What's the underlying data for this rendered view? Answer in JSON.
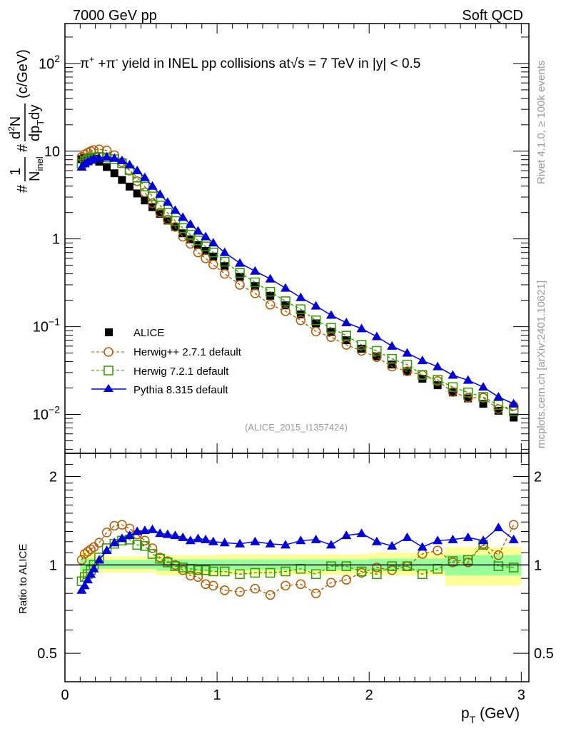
{
  "header": {
    "left": "7000 GeV pp",
    "right": "Soft QCD"
  },
  "side_labels": {
    "rivet": "Rivet 4.1.0, ≥ 100k events",
    "mcplots": "mcplots.cern.ch [arXiv:2401.10621]"
  },
  "chart_data": [
    {
      "type": "scatter",
      "panel": "main",
      "title": "π⁺ +π⁻ yield in INEL pp collisions at √s = 7 TeV in |y| < 0.5",
      "title_parts": {
        "pi_plus": "π",
        "sup_plus": "+",
        "pi_minus": " +π",
        "sup_minus": "-",
        "rest1": " yield in INEL pp collisions at",
        "sqrt_s": "s",
        "rest2": " =  7 TeV in |y| < 0.5"
      },
      "analysis_id": "(ALICE_2015_I1357424)",
      "xlabel": "p_T (GeV)",
      "xlabel_main": "p",
      "xlabel_sub": "T",
      "xlabel_unit": " (GeV)",
      "ylabel": "1/N_inel d²N/dp_T dy (c/GeV)",
      "ylabel_parts": {
        "hash": "#",
        "one": "1",
        "ninel": "N",
        "inel_sub": "inel",
        "d2n": "d",
        "sq": "2",
        "n": "N",
        "dp": "dp",
        "t": "T",
        "dy": "dy",
        "unit": "(c/GeV)"
      },
      "xlim": [
        0,
        3.05
      ],
      "ylim": [
        0.0036,
        285
      ],
      "yscale": "log",
      "yticks": [
        {
          "v": 100,
          "base": "10",
          "exp": "2"
        },
        {
          "v": 10,
          "base": "10",
          "exp": ""
        },
        {
          "v": 1,
          "base": "1",
          "exp": ""
        },
        {
          "v": 0.1,
          "base": "10",
          "exp": "−1"
        },
        {
          "v": 0.01,
          "base": "10",
          "exp": "−2"
        }
      ],
      "xticks": [
        {
          "v": 0,
          "label": "0"
        },
        {
          "v": 1,
          "label": "1"
        },
        {
          "v": 2,
          "label": "2"
        },
        {
          "v": 3,
          "label": "3"
        }
      ],
      "legend": {
        "placement": "lower-left",
        "entries": [
          {
            "name": "ALICE",
            "marker": "square-filled",
            "color": "#000000"
          },
          {
            "name": "Herwig++ 2.7.1 default",
            "marker": "circle-open",
            "color": "#b35900",
            "line": "dashed"
          },
          {
            "name": "Herwig 7.2.1 default",
            "marker": "square-open",
            "color": "#339900",
            "line": "dashed"
          },
          {
            "name": "Pythia 8.315 default",
            "marker": "triangle-filled",
            "color": "#0000dd",
            "line": "solid"
          }
        ]
      },
      "x": [
        0.11,
        0.13,
        0.15,
        0.17,
        0.19,
        0.225,
        0.275,
        0.325,
        0.375,
        0.425,
        0.475,
        0.525,
        0.575,
        0.625,
        0.675,
        0.725,
        0.775,
        0.825,
        0.875,
        0.925,
        0.975,
        1.05,
        1.15,
        1.25,
        1.35,
        1.45,
        1.55,
        1.65,
        1.75,
        1.85,
        1.95,
        2.05,
        2.15,
        2.25,
        2.35,
        2.45,
        2.55,
        2.65,
        2.75,
        2.85,
        2.95
      ],
      "series": [
        {
          "name": "ALICE",
          "values": [
            8.1,
            8.4,
            8.5,
            8.4,
            8.2,
            7.6,
            6.6,
            5.6,
            4.7,
            3.95,
            3.3,
            2.75,
            2.3,
            1.93,
            1.62,
            1.37,
            1.16,
            0.99,
            0.85,
            0.73,
            0.63,
            0.49,
            0.37,
            0.29,
            0.225,
            0.175,
            0.138,
            0.109,
            0.087,
            0.07,
            0.056,
            0.046,
            0.037,
            0.031,
            0.0255,
            0.0215,
            0.0178,
            0.0152,
            0.0132,
            0.011,
            0.0092
          ]
        },
        {
          "name": "Herwig++ 2.7.1 default",
          "values": [
            8.6,
            9.2,
            9.6,
            10.0,
            10.3,
            10.5,
            10.2,
            9.0,
            7.5,
            6.0,
            4.55,
            3.4,
            2.55,
            2.0,
            1.66,
            1.37,
            1.06,
            0.88,
            0.7,
            0.6,
            0.51,
            0.4,
            0.3,
            0.24,
            0.178,
            0.15,
            0.118,
            0.088,
            0.076,
            0.062,
            0.053,
            0.045,
            0.035,
            0.031,
            0.028,
            0.024,
            0.018,
            0.0155,
            0.0155,
            0.0115,
            0.0125
          ]
        },
        {
          "name": "Herwig 7.2.1 default",
          "values": [
            7.2,
            7.7,
            8.0,
            8.3,
            8.5,
            8.6,
            8.5,
            8.1,
            7.3,
            6.1,
            5.0,
            3.95,
            3.05,
            2.4,
            1.98,
            1.6,
            1.33,
            1.12,
            0.96,
            0.82,
            0.7,
            0.55,
            0.41,
            0.32,
            0.25,
            0.195,
            0.158,
            0.118,
            0.097,
            0.079,
            0.062,
            0.053,
            0.043,
            0.037,
            0.0282,
            0.0248,
            0.0205,
            0.0178,
            0.0158,
            0.0128,
            0.0108
          ]
        },
        {
          "name": "Pythia 8.315 default",
          "values": [
            6.6,
            7.2,
            7.6,
            7.9,
            8.2,
            8.3,
            8.6,
            8.3,
            7.8,
            7.0,
            6.0,
            5.0,
            4.0,
            3.22,
            2.62,
            2.12,
            1.76,
            1.47,
            1.23,
            1.06,
            0.9,
            0.7,
            0.53,
            0.43,
            0.35,
            0.275,
            0.215,
            0.172,
            0.135,
            0.111,
            0.095,
            0.077,
            0.06,
            0.05,
            0.041,
            0.035,
            0.028,
            0.0245,
            0.0205,
            0.0158,
            0.0132
          ]
        }
      ]
    },
    {
      "type": "scatter",
      "panel": "ratio",
      "ylabel": "Ratio to ALICE",
      "xlabel": "p_T (GeV)",
      "xlim": [
        0,
        3.05
      ],
      "ylim": [
        0.4,
        2.4
      ],
      "yscale": "log",
      "yticks": [
        {
          "v": 2,
          "label": "2"
        },
        {
          "v": 1,
          "label": "1"
        },
        {
          "v": 0.5,
          "label": "0.5"
        }
      ],
      "reference_line": 1,
      "uncertainty_bands": [
        {
          "name": "stat+sys (yellow)",
          "color": "#ffff99",
          "edges": [
            0.1,
            0.2,
            0.6,
            1.0,
            2.0,
            2.5,
            3.0
          ],
          "lo": [
            0.9,
            0.94,
            0.92,
            0.925,
            0.92,
            0.85,
            0.84
          ],
          "hi": [
            1.11,
            1.07,
            1.08,
            1.085,
            1.1,
            1.15,
            1.16
          ]
        },
        {
          "name": "stat (green)",
          "color": "#99ff99",
          "edges": [
            0.1,
            0.2,
            0.6,
            1.0,
            2.0,
            2.5,
            3.0
          ],
          "lo": [
            0.95,
            0.97,
            0.955,
            0.96,
            0.955,
            0.92,
            0.91
          ],
          "hi": [
            1.05,
            1.04,
            1.045,
            1.045,
            1.05,
            1.08,
            1.08
          ]
        }
      ],
      "x": [
        0.11,
        0.13,
        0.15,
        0.17,
        0.19,
        0.225,
        0.275,
        0.325,
        0.375,
        0.425,
        0.475,
        0.525,
        0.575,
        0.625,
        0.675,
        0.725,
        0.775,
        0.825,
        0.875,
        0.925,
        0.975,
        1.05,
        1.15,
        1.25,
        1.35,
        1.45,
        1.55,
        1.65,
        1.75,
        1.85,
        1.95,
        2.05,
        2.15,
        2.25,
        2.35,
        2.45,
        2.55,
        2.65,
        2.75,
        2.85,
        2.95
      ],
      "series": [
        {
          "name": "Herwig++ 2.7.1 default",
          "values": [
            1.04,
            1.09,
            1.11,
            1.13,
            1.15,
            1.19,
            1.29,
            1.36,
            1.37,
            1.33,
            1.27,
            1.21,
            1.14,
            1.06,
            1.03,
            1.0,
            0.96,
            0.92,
            0.91,
            0.86,
            0.85,
            0.82,
            0.81,
            0.83,
            0.79,
            0.85,
            0.86,
            0.8,
            0.87,
            0.89,
            0.94,
            0.98,
            0.96,
            0.99,
            1.09,
            1.12,
            1.02,
            1.02,
            1.18,
            1.08,
            1.37
          ]
        },
        {
          "name": "Herwig 7.2.1 default",
          "values": [
            0.88,
            0.91,
            0.93,
            0.96,
            1.0,
            1.06,
            1.14,
            1.18,
            1.21,
            1.22,
            1.17,
            1.16,
            1.09,
            1.05,
            1.02,
            0.99,
            0.98,
            0.97,
            0.96,
            0.96,
            0.95,
            0.95,
            0.93,
            0.94,
            0.94,
            0.95,
            0.97,
            0.93,
            0.99,
            0.99,
            0.95,
            0.93,
            0.99,
            0.99,
            0.93,
            0.97,
            1.03,
            1.04,
            1.17,
            0.99,
            0.98
          ]
        },
        {
          "name": "Pythia 8.315 default",
          "values": [
            0.82,
            0.85,
            0.89,
            0.93,
            0.97,
            1.04,
            1.12,
            1.19,
            1.23,
            1.26,
            1.3,
            1.31,
            1.32,
            1.28,
            1.27,
            1.26,
            1.24,
            1.21,
            1.23,
            1.22,
            1.2,
            1.19,
            1.18,
            1.2,
            1.18,
            1.17,
            1.21,
            1.22,
            1.17,
            1.26,
            1.28,
            1.2,
            1.16,
            1.24,
            1.15,
            1.21,
            1.22,
            1.24,
            1.21,
            1.34,
            1.22
          ]
        }
      ]
    }
  ]
}
